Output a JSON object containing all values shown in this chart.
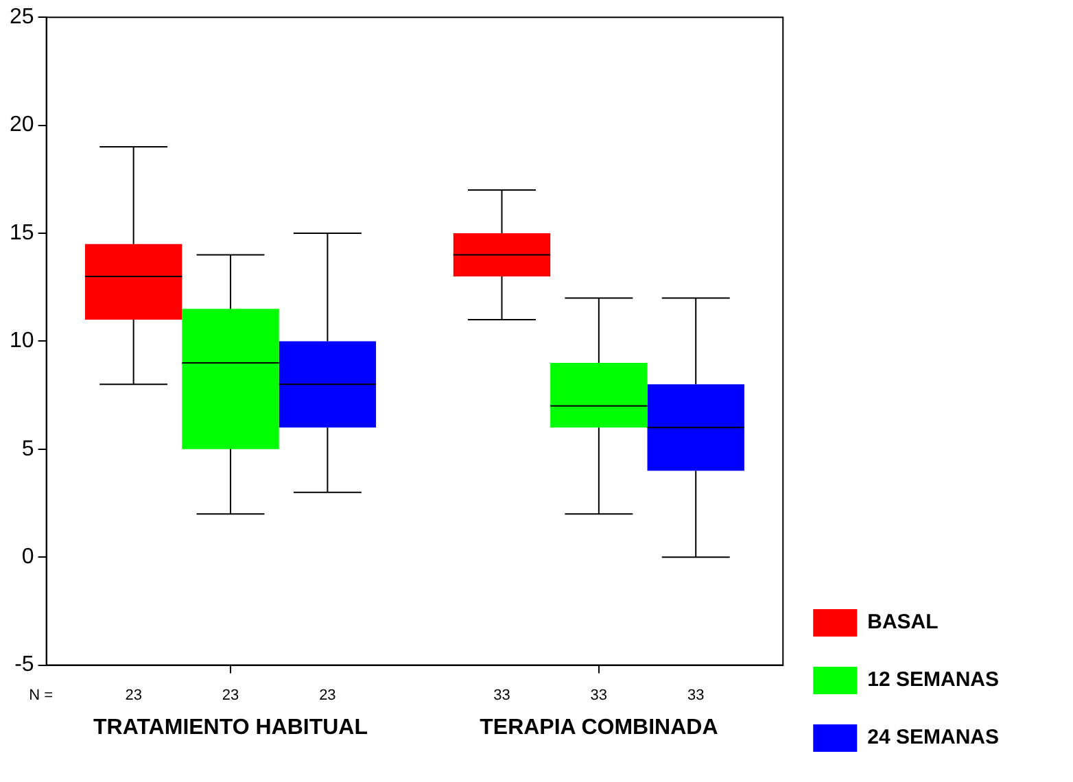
{
  "chart_data": {
    "type": "box",
    "categories": [
      "TRATAMIENTO HABITUAL",
      "TERAPIA COMBINADA"
    ],
    "ylim": [
      -5,
      25
    ],
    "yticks": [
      -5,
      0,
      5,
      10,
      15,
      20,
      25
    ],
    "legend": "bottom right",
    "annotations": [
      "N =",
      "23",
      "23",
      "23",
      "33",
      "33",
      "33"
    ],
    "series": [
      {
        "name": "BASAL",
        "color": "#ff0000",
        "boxes": [
          {
            "low": 8,
            "q1": 11,
            "median": 13,
            "q3": 14.5,
            "high": 19
          },
          {
            "low": 11,
            "q1": 13,
            "median": 14,
            "q3": 15,
            "high": 17
          }
        ]
      },
      {
        "name": "12 SEMANAS",
        "color": "#00ff00",
        "boxes": [
          {
            "low": 2,
            "q1": 5,
            "median": 9,
            "q3": 11.5,
            "high": 14
          },
          {
            "low": 2,
            "q1": 6,
            "median": 7,
            "q3": 9,
            "high": 12
          }
        ]
      },
      {
        "name": "24 SEMANAS",
        "color": "#0000ff",
        "boxes": [
          {
            "low": 3,
            "q1": 6,
            "median": 8,
            "q3": 10,
            "high": 15
          },
          {
            "low": 0,
            "q1": 4,
            "median": 6,
            "q3": 8,
            "high": 12
          }
        ]
      }
    ]
  }
}
